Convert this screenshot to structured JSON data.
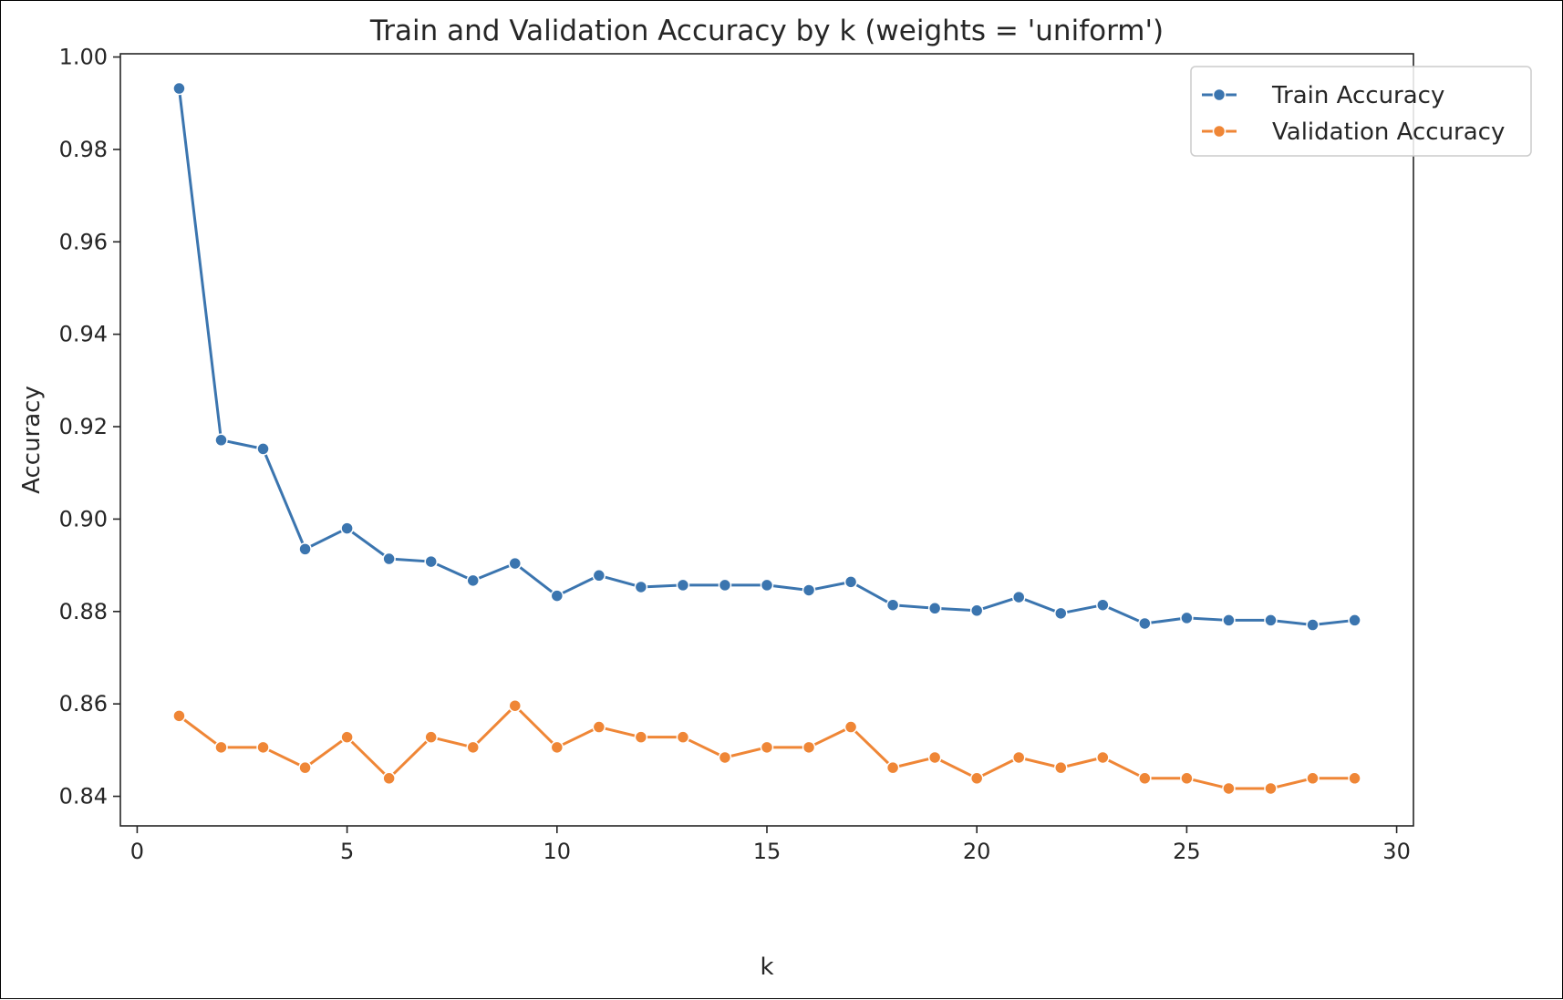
{
  "chart_data": {
    "type": "line",
    "title": "Train and Validation Accuracy by k (weights = 'uniform')",
    "xlabel": "k",
    "ylabel": "Accuracy",
    "xlim": [
      -0.4,
      30.4
    ],
    "ylim": [
      0.8336,
      1.0007
    ],
    "xticks": [
      0,
      5,
      10,
      15,
      20,
      25,
      30
    ],
    "xtick_labels": [
      "0",
      "5",
      "10",
      "15",
      "20",
      "25",
      "30"
    ],
    "yticks": [
      0.84,
      0.86,
      0.88,
      0.9,
      0.92,
      0.94,
      0.96,
      0.98,
      1.0
    ],
    "ytick_labels": [
      "0.84",
      "0.86",
      "0.88",
      "0.90",
      "0.92",
      "0.94",
      "0.96",
      "0.98",
      "1.00"
    ],
    "grid": false,
    "legend": "top-right",
    "x": [
      1,
      2,
      3,
      4,
      5,
      6,
      7,
      8,
      9,
      10,
      11,
      12,
      13,
      14,
      15,
      16,
      17,
      18,
      19,
      20,
      21,
      22,
      23,
      24,
      25,
      26,
      27,
      28,
      29
    ],
    "series": [
      {
        "name": "Train Accuracy",
        "color": "#3b75af",
        "values": [
          0.9932,
          0.9171,
          0.9152,
          0.8935,
          0.898,
          0.8914,
          0.8908,
          0.8867,
          0.8904,
          0.8834,
          0.8878,
          0.8853,
          0.8857,
          0.8857,
          0.8857,
          0.8846,
          0.8864,
          0.8814,
          0.8807,
          0.8802,
          0.8831,
          0.8796,
          0.8814,
          0.8774,
          0.8786,
          0.8781,
          0.8781,
          0.8771,
          0.8781
        ]
      },
      {
        "name": "Validation Accuracy",
        "color": "#ef8636",
        "values": [
          0.8574,
          0.8506,
          0.8506,
          0.8462,
          0.8528,
          0.8439,
          0.8528,
          0.8506,
          0.8596,
          0.8506,
          0.855,
          0.8528,
          0.8528,
          0.8484,
          0.8506,
          0.8506,
          0.855,
          0.8462,
          0.8484,
          0.8439,
          0.8484,
          0.8462,
          0.8484,
          0.8439,
          0.8439,
          0.8417,
          0.8417,
          0.8439,
          0.8439
        ]
      }
    ]
  }
}
